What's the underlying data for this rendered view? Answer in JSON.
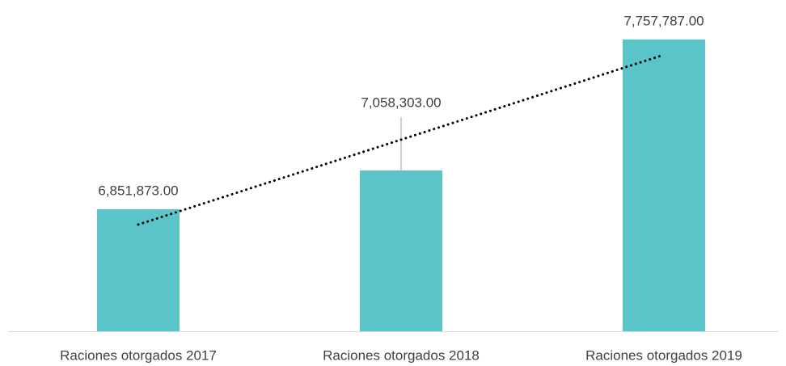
{
  "chart_data": {
    "type": "bar",
    "categories": [
      "Raciones otorgados 2017",
      "Raciones otorgados 2018",
      "Raciones otorgados 2019"
    ],
    "values": [
      6851873,
      7058303,
      7757787
    ],
    "value_labels": [
      "6,851,873.00",
      "7,058,303.00",
      "7,757,787.00"
    ],
    "color": "#5bc4c8",
    "ylim": [
      6200000,
      7800000
    ],
    "trendline": "linear",
    "trendline_color": "#000000"
  }
}
